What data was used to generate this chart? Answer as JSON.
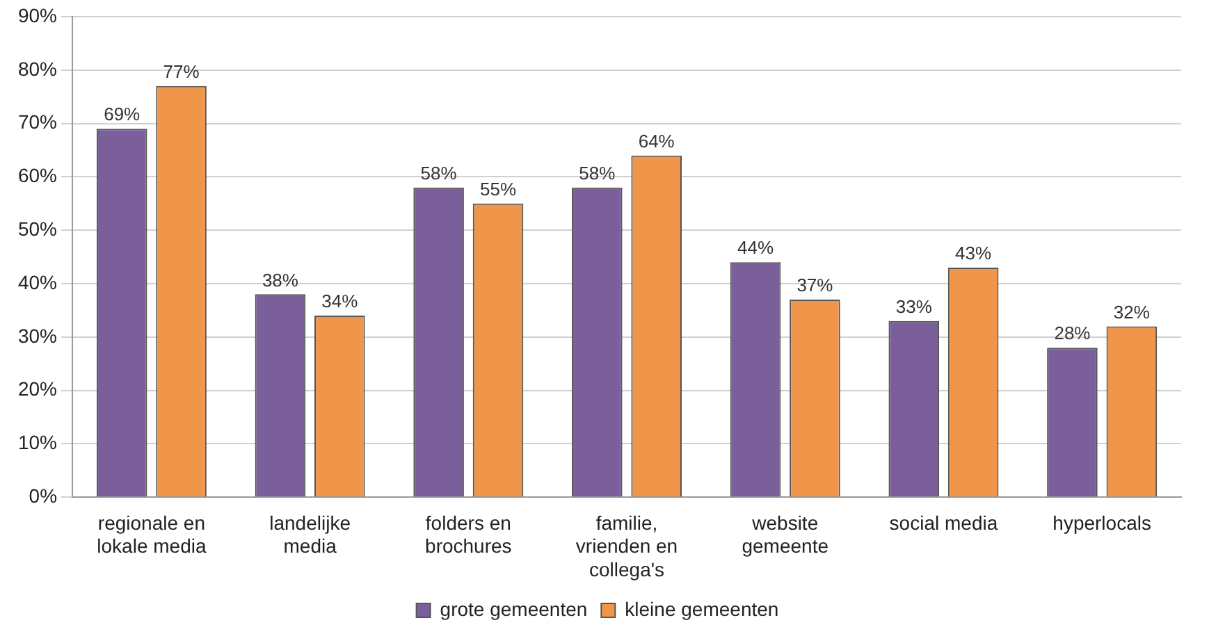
{
  "chart_data": {
    "type": "bar",
    "categories": [
      "regionale en lokale media",
      "landelijke media",
      "folders en brochures",
      "familie, vrienden en collega's",
      "website gemeente",
      "social media",
      "hyperlocals"
    ],
    "series": [
      {
        "name": "grote gemeenten",
        "color": "#7b5f9b",
        "values": [
          69,
          38,
          58,
          58,
          44,
          33,
          28
        ],
        "value_labels": [
          "69%",
          "38%",
          "58%",
          "58%",
          "44%",
          "33%",
          "28%"
        ]
      },
      {
        "name": "kleine gemeenten",
        "color": "#f0964b",
        "values": [
          77,
          34,
          55,
          64,
          37,
          43,
          32
        ],
        "value_labels": [
          "77%",
          "34%",
          "55%",
          "64%",
          "37%",
          "43%",
          "32%"
        ]
      }
    ],
    "ylim": [
      0,
      90
    ],
    "yticks": [
      {
        "value": 0,
        "label": "0%"
      },
      {
        "value": 10,
        "label": "10%"
      },
      {
        "value": 20,
        "label": "20%"
      },
      {
        "value": 30,
        "label": "30%"
      },
      {
        "value": 40,
        "label": "40%"
      },
      {
        "value": 50,
        "label": "50%"
      },
      {
        "value": 60,
        "label": "60%"
      },
      {
        "value": 70,
        "label": "70%"
      },
      {
        "value": 80,
        "label": "80%"
      },
      {
        "value": 90,
        "label": "90%"
      }
    ],
    "grid": "y",
    "legend": "bottom"
  }
}
